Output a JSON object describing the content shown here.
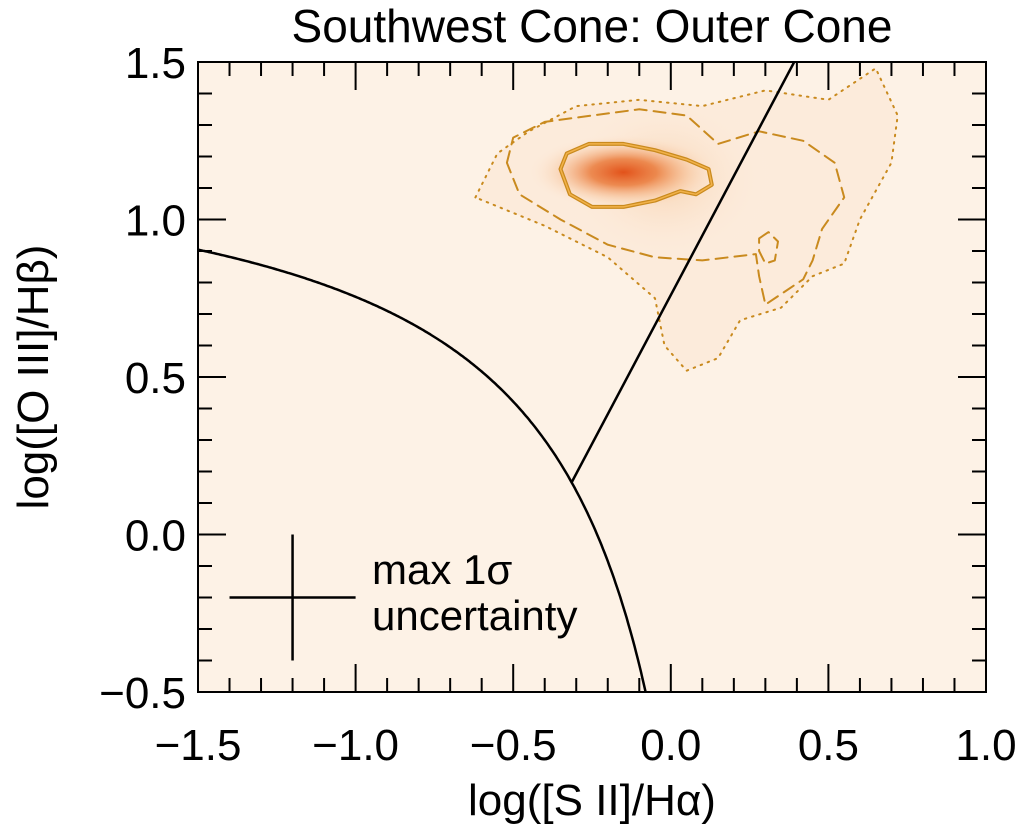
{
  "chart_data": {
    "type": "heatmap",
    "title": "Southwest Cone: Outer Cone",
    "xlabel": "log([S II]/Hα)",
    "ylabel": "log([O III]/Hβ)",
    "xlim": [
      -1.5,
      1.0
    ],
    "ylim": [
      -0.5,
      1.5
    ],
    "x_ticks": [
      -1.5,
      -1.0,
      -0.5,
      0.0,
      0.5,
      1.0
    ],
    "x_tick_labels": [
      "−1.5",
      "−1.0",
      "−0.5",
      "0.0",
      "0.5",
      "1.0"
    ],
    "y_ticks": [
      -0.5,
      0.0,
      0.5,
      1.0,
      1.5
    ],
    "y_tick_labels": [
      "−0.5",
      "0.0",
      "0.5",
      "1.0",
      "1.5"
    ],
    "density_peak": {
      "x": -0.17,
      "y": 1.15
    },
    "colors": {
      "background": "#fdf2e6",
      "peak": "#e2521a",
      "contour": "#c98a1e",
      "line": "#000000"
    },
    "curves": [
      {
        "name": "Kewley 2001 extreme starburst line",
        "equation": "y = 0.72 / (x - 0.32) + 1.30"
      },
      {
        "name": "Seyfert / LINER division line",
        "equation": "y = 1.89 x + 0.76"
      }
    ],
    "contours": [
      {
        "level": "outer",
        "style": "dotted",
        "points": [
          [
            -0.62,
            1.07
          ],
          [
            -0.55,
            1.21
          ],
          [
            -0.45,
            1.28
          ],
          [
            -0.3,
            1.36
          ],
          [
            -0.1,
            1.38
          ],
          [
            0.1,
            1.36
          ],
          [
            0.3,
            1.41
          ],
          [
            0.5,
            1.38
          ],
          [
            0.65,
            1.48
          ],
          [
            0.72,
            1.33
          ],
          [
            0.7,
            1.18
          ],
          [
            0.6,
            1.0
          ],
          [
            0.55,
            0.86
          ],
          [
            0.45,
            0.82
          ],
          [
            0.35,
            0.72
          ],
          [
            0.22,
            0.68
          ],
          [
            0.15,
            0.56
          ],
          [
            0.05,
            0.52
          ],
          [
            -0.02,
            0.6
          ],
          [
            -0.05,
            0.75
          ],
          [
            -0.2,
            0.88
          ],
          [
            -0.4,
            0.98
          ],
          [
            -0.62,
            1.07
          ]
        ]
      },
      {
        "level": "middle",
        "style": "dashed",
        "points": [
          [
            -0.52,
            1.18
          ],
          [
            -0.5,
            1.26
          ],
          [
            -0.4,
            1.31
          ],
          [
            -0.25,
            1.33
          ],
          [
            -0.1,
            1.35
          ],
          [
            0.05,
            1.33
          ],
          [
            0.15,
            1.24
          ],
          [
            0.28,
            1.28
          ],
          [
            0.42,
            1.25
          ],
          [
            0.52,
            1.18
          ],
          [
            0.55,
            1.07
          ],
          [
            0.48,
            0.97
          ],
          [
            0.45,
            0.87
          ],
          [
            0.42,
            0.81
          ],
          [
            0.3,
            0.73
          ],
          [
            0.28,
            0.82
          ],
          [
            0.27,
            0.89
          ],
          [
            0.1,
            0.87
          ],
          [
            -0.05,
            0.88
          ],
          [
            -0.2,
            0.92
          ],
          [
            -0.35,
            1.0
          ],
          [
            -0.48,
            1.08
          ],
          [
            -0.52,
            1.18
          ]
        ]
      },
      {
        "level": "middle-island",
        "style": "dashed",
        "points": [
          [
            0.28,
            0.94
          ],
          [
            0.31,
            0.96
          ],
          [
            0.34,
            0.93
          ],
          [
            0.33,
            0.87
          ],
          [
            0.3,
            0.86
          ],
          [
            0.28,
            0.9
          ],
          [
            0.28,
            0.94
          ]
        ]
      },
      {
        "level": "inner",
        "style": "solid",
        "points": [
          [
            -0.35,
            1.16
          ],
          [
            -0.33,
            1.21
          ],
          [
            -0.26,
            1.24
          ],
          [
            -0.15,
            1.24
          ],
          [
            -0.05,
            1.22
          ],
          [
            0.05,
            1.19
          ],
          [
            0.12,
            1.16
          ],
          [
            0.13,
            1.11
          ],
          [
            0.08,
            1.08
          ],
          [
            0.03,
            1.09
          ],
          [
            -0.05,
            1.06
          ],
          [
            -0.15,
            1.04
          ],
          [
            -0.25,
            1.04
          ],
          [
            -0.32,
            1.08
          ],
          [
            -0.35,
            1.16
          ]
        ]
      }
    ],
    "legend": {
      "label_line1": "max 1σ",
      "label_line2": "uncertainty",
      "position": "bottom-left",
      "x_center": -1.2,
      "y_center": -0.2,
      "x_halfwidth": 0.2,
      "y_halfwidth": 0.2
    }
  }
}
